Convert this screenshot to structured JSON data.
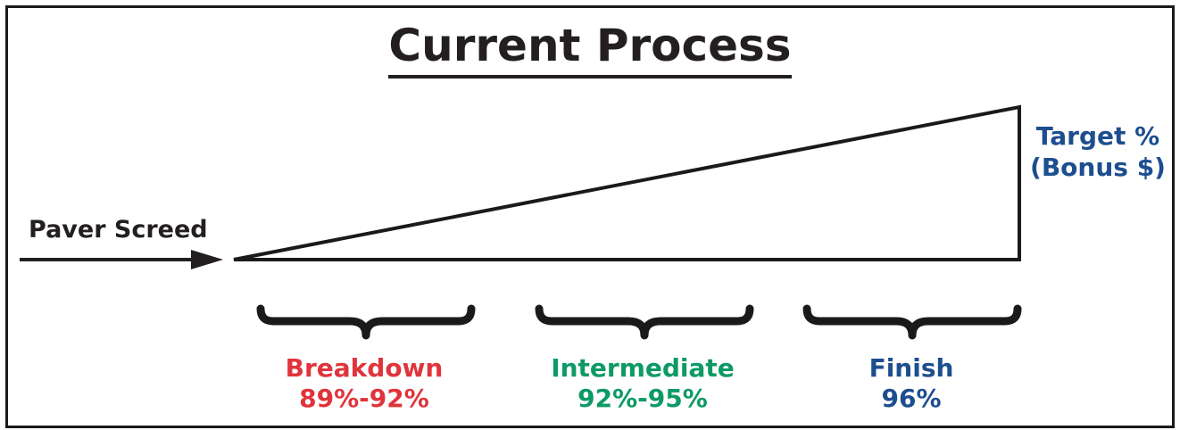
{
  "title": "Current Process",
  "input_label": "Paver Screed",
  "target": {
    "line1": "Target %",
    "line2": "(Bonus $)"
  },
  "stages": [
    {
      "name": "Breakdown",
      "range": "89%-92%",
      "color": "#e0343c"
    },
    {
      "name": "Intermediate",
      "range": "92%-95%",
      "color": "#0d9a66"
    },
    {
      "name": "Finish",
      "range": "96%",
      "color": "#1d4e8f"
    }
  ],
  "colors": {
    "text_dark": "#231f20",
    "target_blue": "#1d4e8f"
  }
}
